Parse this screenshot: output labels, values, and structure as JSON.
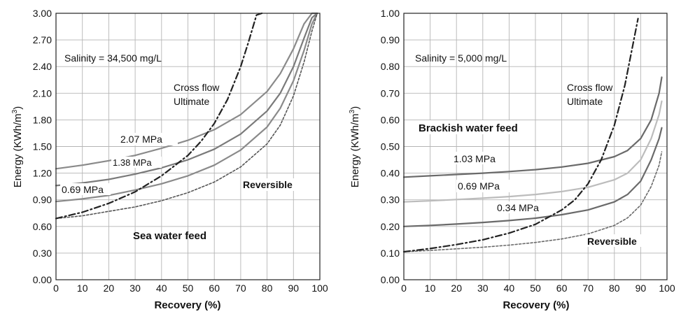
{
  "chart_data": [
    {
      "type": "line",
      "id": "seawater",
      "title": "",
      "annotation_salinity": "Salinity = 34,500 mg/L",
      "annotation_feed": "Sea water feed",
      "annotation_crossflow": [
        "Cross flow",
        "Ultimate"
      ],
      "xlabel": "Recovery (%)",
      "ylabel_prefix": "Energy (KWh/m",
      "ylabel_sup": "3",
      "ylabel_suffix": ")",
      "xlim": [
        0,
        100
      ],
      "ylim": [
        0,
        3
      ],
      "x_ticks": [
        0,
        10,
        20,
        30,
        40,
        50,
        60,
        70,
        80,
        90,
        100
      ],
      "y_ticks": [
        "0.00",
        "0.30",
        "0.60",
        "0.90",
        "1.20",
        "1.50",
        "1.80",
        "2.10",
        "2.40",
        "2.70",
        "3.00"
      ],
      "grid": true,
      "series": [
        {
          "name": "2.07 MPa",
          "style": "solid",
          "color": "#8a8a8a",
          "x": [
            0,
            10,
            20,
            30,
            40,
            50,
            60,
            70,
            80,
            85,
            90,
            94,
            97,
            99
          ],
          "y": [
            1.25,
            1.29,
            1.34,
            1.4,
            1.48,
            1.57,
            1.69,
            1.86,
            2.12,
            2.32,
            2.6,
            2.88,
            3.0,
            3.0
          ]
        },
        {
          "name": "1.38 MPa",
          "style": "solid",
          "color": "#7a7a7a",
          "x": [
            0,
            10,
            20,
            30,
            40,
            50,
            60,
            70,
            80,
            85,
            90,
            94,
            97,
            99
          ],
          "y": [
            1.06,
            1.09,
            1.13,
            1.19,
            1.26,
            1.35,
            1.47,
            1.64,
            1.9,
            2.1,
            2.4,
            2.72,
            2.95,
            3.0
          ]
        },
        {
          "name": "0.69 MPa",
          "style": "solid",
          "color": "#8a8a8a",
          "x": [
            0,
            10,
            20,
            30,
            40,
            50,
            60,
            70,
            80,
            85,
            90,
            94,
            97,
            99
          ],
          "y": [
            0.88,
            0.91,
            0.95,
            1.01,
            1.08,
            1.17,
            1.29,
            1.46,
            1.72,
            1.93,
            2.24,
            2.58,
            2.88,
            3.0
          ]
        },
        {
          "name": "Reversible",
          "style": "dotted",
          "color": "#555555",
          "x": [
            0,
            10,
            20,
            30,
            40,
            50,
            60,
            70,
            80,
            85,
            90,
            94,
            97,
            99
          ],
          "y": [
            0.69,
            0.72,
            0.77,
            0.82,
            0.89,
            0.98,
            1.1,
            1.27,
            1.53,
            1.74,
            2.07,
            2.45,
            2.8,
            3.0
          ]
        },
        {
          "name": "Cross flow Ultimate",
          "style": "dashdot",
          "color": "#222222",
          "x": [
            0,
            10,
            20,
            30,
            40,
            50,
            55,
            60,
            65,
            70,
            73,
            76,
            78
          ],
          "y": [
            0.69,
            0.76,
            0.86,
            0.99,
            1.17,
            1.4,
            1.56,
            1.76,
            2.03,
            2.4,
            2.68,
            2.98,
            3.0
          ]
        }
      ]
    },
    {
      "type": "line",
      "id": "brackish",
      "title": "",
      "annotation_salinity": "Salinity = 5,000 mg/L",
      "annotation_feed": "Brackish water feed",
      "annotation_crossflow": [
        "Cross flow",
        "Ultimate"
      ],
      "xlabel": "Recovery (%)",
      "ylabel_prefix": "Energy (KWh/m",
      "ylabel_sup": "3",
      "ylabel_suffix": ")",
      "xlim": [
        0,
        100
      ],
      "ylim": [
        0,
        1
      ],
      "x_ticks": [
        0,
        10,
        20,
        30,
        40,
        50,
        60,
        70,
        80,
        90,
        100
      ],
      "y_ticks": [
        "0.00",
        "0.10",
        "0.20",
        "0.30",
        "0.40",
        "0.50",
        "0.60",
        "0.70",
        "0.80",
        "0.90",
        "1.00"
      ],
      "grid": true,
      "series": [
        {
          "name": "1.03 MPa",
          "style": "solid",
          "color": "#6a6a6a",
          "x": [
            0,
            10,
            20,
            30,
            40,
            50,
            60,
            70,
            80,
            85,
            90,
            94,
            97,
            98
          ],
          "y": [
            0.385,
            0.39,
            0.395,
            0.4,
            0.406,
            0.413,
            0.423,
            0.437,
            0.462,
            0.485,
            0.53,
            0.6,
            0.7,
            0.76
          ]
        },
        {
          "name": "0.69 MPa",
          "style": "solid",
          "color": "#bcbcbc",
          "x": [
            0,
            10,
            20,
            30,
            40,
            50,
            60,
            70,
            80,
            85,
            90,
            94,
            97,
            98
          ],
          "y": [
            0.292,
            0.296,
            0.301,
            0.306,
            0.312,
            0.32,
            0.331,
            0.347,
            0.375,
            0.4,
            0.45,
            0.53,
            0.62,
            0.67
          ]
        },
        {
          "name": "0.34 MPa",
          "style": "solid",
          "color": "#6a6a6a",
          "x": [
            0,
            10,
            20,
            30,
            40,
            50,
            60,
            70,
            80,
            85,
            90,
            94,
            97,
            98
          ],
          "y": [
            0.2,
            0.204,
            0.209,
            0.215,
            0.222,
            0.231,
            0.244,
            0.262,
            0.292,
            0.32,
            0.37,
            0.45,
            0.53,
            0.57
          ]
        },
        {
          "name": "Reversible",
          "style": "dotted",
          "color": "#6a6a6a",
          "x": [
            0,
            10,
            20,
            30,
            40,
            50,
            60,
            70,
            80,
            85,
            90,
            94,
            97,
            98
          ],
          "y": [
            0.105,
            0.11,
            0.116,
            0.122,
            0.13,
            0.14,
            0.153,
            0.172,
            0.204,
            0.232,
            0.28,
            0.35,
            0.43,
            0.48
          ]
        },
        {
          "name": "Cross flow Ultimate",
          "style": "dashdot",
          "color": "#222222",
          "x": [
            0,
            10,
            20,
            30,
            40,
            50,
            60,
            65,
            70,
            75,
            80,
            84,
            87,
            89
          ],
          "y": [
            0.105,
            0.117,
            0.132,
            0.15,
            0.175,
            0.208,
            0.262,
            0.3,
            0.36,
            0.45,
            0.58,
            0.73,
            0.88,
            0.98
          ]
        }
      ]
    }
  ],
  "labels": {
    "sea": {
      "s207": "2.07 MPa",
      "s138": "1.38 MPa",
      "s069": "0.69 MPa",
      "reversible": "Reversible"
    },
    "brackish": {
      "s103": "1.03 MPa",
      "s069": "0.69 MPa",
      "s034": "0.34 MPa",
      "reversible": "Reversible"
    }
  }
}
